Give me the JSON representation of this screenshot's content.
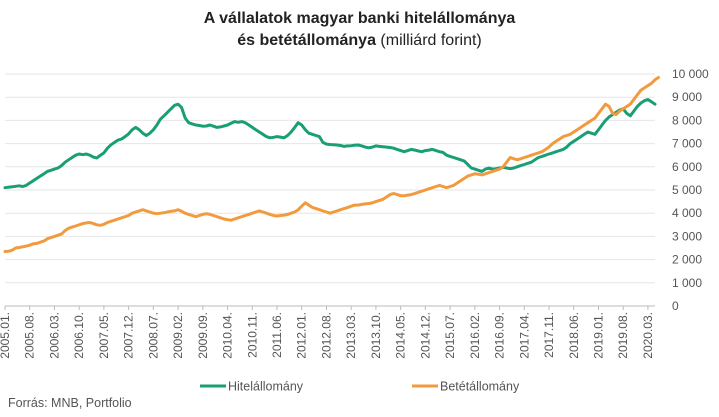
{
  "title": {
    "line1_bold": "A vállalatok magyar banki hitelállománya",
    "line2_bold": "és betétállománya",
    "line2_normal": " (milliárd forint)"
  },
  "source": "Forrás: MNB, Portfolio",
  "colors": {
    "hitel": "#1a9e75",
    "betet": "#f29a3e",
    "grid": "#e6e6e6",
    "axis": "#bbbbbb"
  },
  "chart_data": {
    "type": "line",
    "y_axis_position": "right",
    "ylim": [
      0,
      10000
    ],
    "y_ticks": [
      "0",
      "1 000",
      "2 000",
      "3 000",
      "4 000",
      "5 000",
      "6 000",
      "7 000",
      "8 000",
      "9 000",
      "10 000"
    ],
    "x_tick_labels": [
      "2005.01.",
      "2005.08.",
      "2006.03.",
      "2006.10.",
      "2007.05.",
      "2007.12.",
      "2008.07.",
      "2009.02.",
      "2009.09.",
      "2010.04.",
      "2010.11.",
      "2011.06.",
      "2012.01.",
      "2012.08.",
      "2013.03.",
      "2013.10.",
      "2014.05.",
      "2014.12.",
      "2015.07.",
      "2016.02.",
      "2016.09.",
      "2017.04.",
      "2017.11.",
      "2018.06.",
      "2019.01.",
      "2019.08.",
      "2020.03."
    ],
    "grid": true,
    "legend": "bottom",
    "series": [
      {
        "name": "Hitelállomány",
        "color": "#1a9e75",
        "values": [
          5100,
          5120,
          5140,
          5160,
          5180,
          5150,
          5200,
          5300,
          5400,
          5500,
          5600,
          5700,
          5800,
          5850,
          5900,
          5950,
          6050,
          6200,
          6300,
          6400,
          6500,
          6550,
          6520,
          6550,
          6500,
          6420,
          6380,
          6500,
          6600,
          6800,
          6950,
          7050,
          7150,
          7200,
          7300,
          7420,
          7600,
          7700,
          7600,
          7450,
          7350,
          7450,
          7600,
          7800,
          8050,
          8200,
          8350,
          8500,
          8650,
          8700,
          8550,
          8100,
          7900,
          7850,
          7800,
          7780,
          7750,
          7760,
          7800,
          7750,
          7700,
          7720,
          7760,
          7800,
          7880,
          7950,
          7920,
          7950,
          7900,
          7800,
          7700,
          7600,
          7500,
          7400,
          7300,
          7250,
          7270,
          7300,
          7280,
          7250,
          7350,
          7500,
          7700,
          7900,
          7800,
          7600,
          7450,
          7400,
          7350,
          7300,
          7050,
          6980,
          6960,
          6950,
          6940,
          6920,
          6880,
          6900,
          6910,
          6930,
          6940,
          6900,
          6850,
          6820,
          6850,
          6900,
          6880,
          6860,
          6850,
          6830,
          6800,
          6750,
          6700,
          6650,
          6700,
          6750,
          6720,
          6680,
          6650,
          6700,
          6720,
          6750,
          6700,
          6650,
          6620,
          6500,
          6450,
          6400,
          6350,
          6300,
          6250,
          6100,
          5950,
          5900,
          5850,
          5800,
          5900,
          5950,
          5900,
          5920,
          5950,
          5980,
          5950,
          5920,
          5950,
          6000,
          6050,
          6100,
          6150,
          6200,
          6300,
          6400,
          6450,
          6500,
          6550,
          6600,
          6650,
          6700,
          6750,
          6850,
          7000,
          7100,
          7200,
          7300,
          7400,
          7500,
          7450,
          7400,
          7600,
          7800,
          8000,
          8150,
          8250,
          8350,
          8450,
          8500,
          8300,
          8200,
          8400,
          8600,
          8750,
          8850,
          8900,
          8800,
          8700
        ]
      },
      {
        "name": "Betétállomány",
        "color": "#f29a3e",
        "values": [
          2350,
          2360,
          2400,
          2500,
          2520,
          2550,
          2580,
          2620,
          2680,
          2700,
          2750,
          2800,
          2900,
          2950,
          3000,
          3050,
          3100,
          3250,
          3350,
          3400,
          3450,
          3500,
          3550,
          3580,
          3600,
          3550,
          3500,
          3480,
          3520,
          3600,
          3650,
          3700,
          3750,
          3800,
          3850,
          3900,
          4000,
          4050,
          4100,
          4150,
          4100,
          4050,
          4000,
          3980,
          4000,
          4020,
          4050,
          4080,
          4100,
          4150,
          4080,
          4000,
          3950,
          3900,
          3850,
          3900,
          3950,
          3980,
          3950,
          3900,
          3850,
          3800,
          3750,
          3720,
          3700,
          3750,
          3800,
          3850,
          3900,
          3950,
          4000,
          4050,
          4100,
          4050,
          4000,
          3950,
          3900,
          3880,
          3900,
          3920,
          3950,
          4000,
          4050,
          4150,
          4300,
          4450,
          4350,
          4250,
          4200,
          4150,
          4100,
          4050,
          4000,
          4050,
          4100,
          4150,
          4200,
          4250,
          4300,
          4350,
          4350,
          4380,
          4400,
          4420,
          4450,
          4500,
          4550,
          4600,
          4700,
          4800,
          4850,
          4800,
          4750,
          4750,
          4780,
          4800,
          4850,
          4900,
          4950,
          5000,
          5050,
          5100,
          5150,
          5200,
          5150,
          5100,
          5150,
          5200,
          5300,
          5400,
          5500,
          5600,
          5650,
          5700,
          5680,
          5650,
          5700,
          5750,
          5800,
          5850,
          5900,
          6000,
          6200,
          6400,
          6350,
          6300,
          6350,
          6400,
          6450,
          6500,
          6550,
          6600,
          6650,
          6750,
          6850,
          7000,
          7100,
          7200,
          7300,
          7350,
          7400,
          7500,
          7600,
          7700,
          7800,
          7900,
          8000,
          8100,
          8300,
          8500,
          8700,
          8600,
          8300,
          8250,
          8400,
          8500,
          8600,
          8700,
          8900,
          9100,
          9300,
          9400,
          9500,
          9600,
          9750,
          9850
        ]
      }
    ]
  }
}
